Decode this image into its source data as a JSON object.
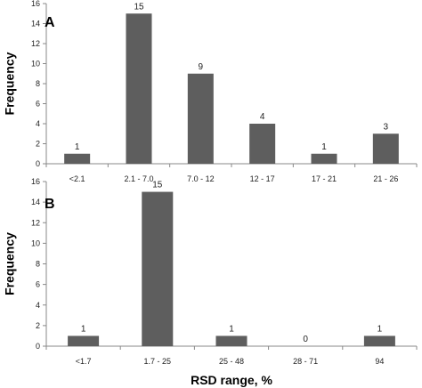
{
  "chart_data": [
    {
      "type": "bar",
      "panel_label": "A",
      "categories": [
        "<2.1",
        "2.1 - 7.0",
        "7.0 - 12",
        "12 - 17",
        "17 - 21",
        "21 - 26"
      ],
      "values": [
        1,
        15,
        9,
        4,
        1,
        3
      ],
      "data_labels": [
        "1",
        "15",
        "9",
        "4",
        "1",
        "3"
      ],
      "ylabel": "Frequency",
      "xlabel": "",
      "ylim": [
        0,
        16
      ],
      "yticks": [
        "0",
        "2",
        "4",
        "6",
        "8",
        "10",
        "12",
        "14",
        "16"
      ],
      "grid": false,
      "bar_color": "#5e5e5e"
    },
    {
      "type": "bar",
      "panel_label": "B",
      "categories": [
        "<1.7",
        "1.7 - 25",
        "25 - 48",
        "28 - 71",
        "94"
      ],
      "values": [
        1,
        15,
        1,
        0,
        1
      ],
      "data_labels": [
        "1",
        "15",
        "1",
        "0",
        "1"
      ],
      "ylabel": "Frequency",
      "xlabel": "RSD range, %",
      "ylim": [
        0,
        16
      ],
      "yticks": [
        "0",
        "2",
        "4",
        "6",
        "8",
        "10",
        "12",
        "14",
        "16"
      ],
      "grid": false,
      "bar_color": "#5e5e5e"
    }
  ]
}
